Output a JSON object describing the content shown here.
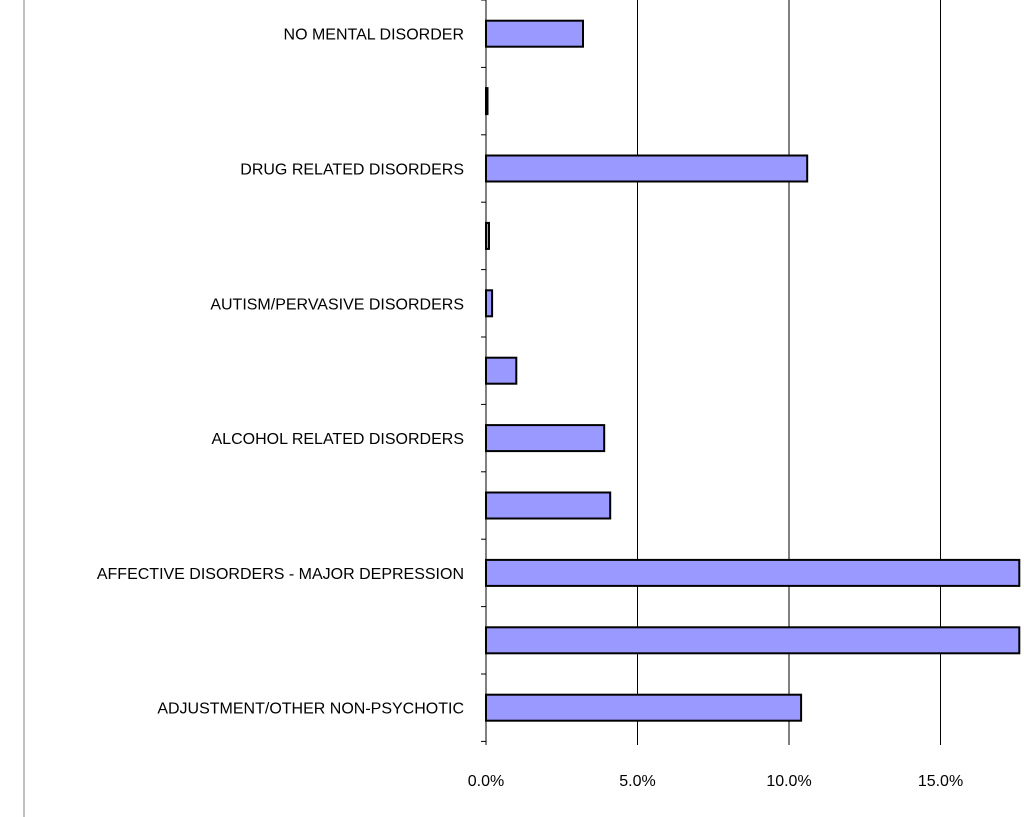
{
  "chart_data": {
    "type": "bar",
    "orientation": "horizontal",
    "categories": [
      "NO MENTAL DISORDER",
      "",
      "DRUG RELATED DISORDERS",
      "",
      "AUTISM/PERVASIVE DISORDERS",
      "",
      "ALCOHOL RELATED DISORDERS",
      "",
      "AFFECTIVE DISORDERS - MAJOR DEPRESSION",
      "",
      "ADJUSTMENT/OTHER NON-PSYCHOTIC"
    ],
    "values": [
      3.2,
      0.05,
      10.6,
      0.1,
      0.2,
      1.0,
      3.9,
      4.1,
      17.6,
      17.6,
      10.4
    ],
    "x_ticks": [
      "0.0%",
      "5.0%",
      "10.0%",
      "15.0%"
    ],
    "xlim": [
      0,
      17.6
    ],
    "grid": true,
    "colors": {
      "bar_fill": "#9999ff",
      "bar_stroke": "#000000",
      "grid": "#000000"
    }
  }
}
